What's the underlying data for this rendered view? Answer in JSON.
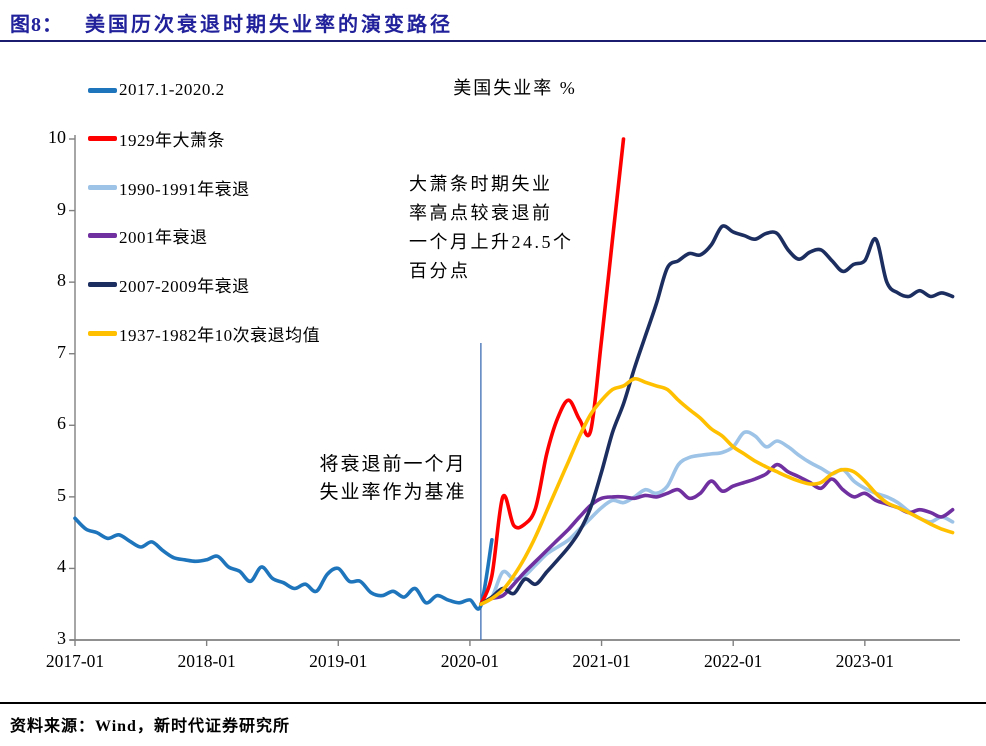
{
  "title": {
    "label": "图8：",
    "text": "美国历次衰退时期失业率的演变路径"
  },
  "source": "资料来源：Wind，新时代证券研究所",
  "annotations": {
    "depression_note": {
      "lines": [
        "大萧条时期失业",
        "率高点较衰退前",
        "一个月上升24.5个",
        "百分点"
      ]
    },
    "baseline_note": {
      "lines": [
        "将衰退前一个月",
        "失业率作为基准"
      ]
    }
  },
  "colors": {
    "title": "#21219b",
    "axis": "#808080",
    "vline": "#3c6cb4"
  },
  "chart_data": {
    "type": "line",
    "title": "美国失业率 %",
    "xlabel": "",
    "ylabel": "",
    "ylim": [
      3,
      10
    ],
    "yticks": [
      10,
      9,
      8,
      7,
      6,
      5,
      4,
      3
    ],
    "xticks": [
      "2017-01",
      "2018-01",
      "2019-01",
      "2020-01",
      "2021-01",
      "2022-01",
      "2023-01"
    ],
    "grid": false,
    "legend_position": "left-vertical",
    "baseline_vline": {
      "month": 37,
      "value_from": 3.0,
      "value_to": 7.15
    },
    "series": [
      {
        "id": "2017-2020",
        "name": "2017.1-2020.2",
        "color": "#1f75bc",
        "start_month": 0,
        "values": [
          4.7,
          4.55,
          4.5,
          4.42,
          4.47,
          4.38,
          4.3,
          4.37,
          4.25,
          4.15,
          4.12,
          4.1,
          4.12,
          4.17,
          4.02,
          3.96,
          3.82,
          4.02,
          3.86,
          3.8,
          3.72,
          3.78,
          3.68,
          3.92,
          4.0,
          3.82,
          3.82,
          3.66,
          3.62,
          3.68,
          3.6,
          3.72,
          3.52,
          3.62,
          3.56,
          3.52,
          3.56,
          3.48,
          4.4
        ]
      },
      {
        "id": "1929",
        "name": "1929年大萧条",
        "color": "#fe0000",
        "start_month": 37,
        "values": [
          3.5,
          3.9,
          5.0,
          4.6,
          4.62,
          4.85,
          5.6,
          6.1,
          6.35,
          6.08,
          5.92,
          7.2,
          8.6,
          10.0
        ]
      },
      {
        "id": "1990-1991",
        "name": "1990-1991年衰退",
        "color": "#9dc3e6",
        "start_month": 37,
        "values": [
          3.5,
          3.6,
          3.95,
          3.85,
          3.9,
          4.05,
          4.2,
          4.3,
          4.4,
          4.55,
          4.7,
          4.85,
          4.95,
          4.92,
          5.0,
          5.1,
          5.05,
          5.15,
          5.45,
          5.55,
          5.58,
          5.6,
          5.62,
          5.7,
          5.9,
          5.85,
          5.7,
          5.78,
          5.7,
          5.58,
          5.48,
          5.4,
          5.32,
          5.38,
          5.22,
          5.12,
          5.05,
          5.0,
          4.92,
          4.8,
          4.7,
          4.65,
          4.72,
          4.65
        ]
      },
      {
        "id": "2001",
        "name": "2001年衰退",
        "color": "#7030a0",
        "start_month": 37,
        "values": [
          3.5,
          3.58,
          3.62,
          3.78,
          3.95,
          4.1,
          4.25,
          4.4,
          4.55,
          4.72,
          4.88,
          4.98,
          5.0,
          5.0,
          4.98,
          5.02,
          5.0,
          5.05,
          5.1,
          4.98,
          5.05,
          5.22,
          5.08,
          5.15,
          5.2,
          5.25,
          5.32,
          5.45,
          5.35,
          5.28,
          5.2,
          5.12,
          5.25,
          5.1,
          5.0,
          5.05,
          4.95,
          4.9,
          4.85,
          4.78,
          4.82,
          4.78,
          4.72,
          4.82
        ]
      },
      {
        "id": "2007-2009",
        "name": "2007-2009年衰退",
        "color": "#1c2e5f",
        "start_month": 37,
        "values": [
          3.5,
          3.6,
          3.72,
          3.65,
          3.85,
          3.78,
          3.95,
          4.12,
          4.3,
          4.52,
          4.85,
          5.35,
          5.9,
          6.3,
          6.8,
          7.25,
          7.7,
          8.2,
          8.3,
          8.4,
          8.38,
          8.52,
          8.78,
          8.7,
          8.65,
          8.6,
          8.68,
          8.68,
          8.45,
          8.32,
          8.42,
          8.45,
          8.3,
          8.15,
          8.25,
          8.3,
          8.6,
          8.0,
          7.85,
          7.8,
          7.88,
          7.8,
          7.85,
          7.8
        ]
      },
      {
        "id": "1937-1982-avg",
        "name": "1937-1982年10次衰退均值",
        "color": "#ffc000",
        "start_month": 37,
        "values": [
          3.5,
          3.58,
          3.7,
          3.9,
          4.15,
          4.45,
          4.8,
          5.15,
          5.5,
          5.85,
          6.15,
          6.35,
          6.5,
          6.55,
          6.65,
          6.6,
          6.55,
          6.5,
          6.35,
          6.22,
          6.1,
          5.95,
          5.85,
          5.7,
          5.6,
          5.5,
          5.42,
          5.35,
          5.28,
          5.22,
          5.18,
          5.2,
          5.32,
          5.38,
          5.35,
          5.22,
          5.05,
          4.92,
          4.85,
          4.78,
          4.7,
          4.62,
          4.55,
          4.5
        ]
      }
    ]
  }
}
